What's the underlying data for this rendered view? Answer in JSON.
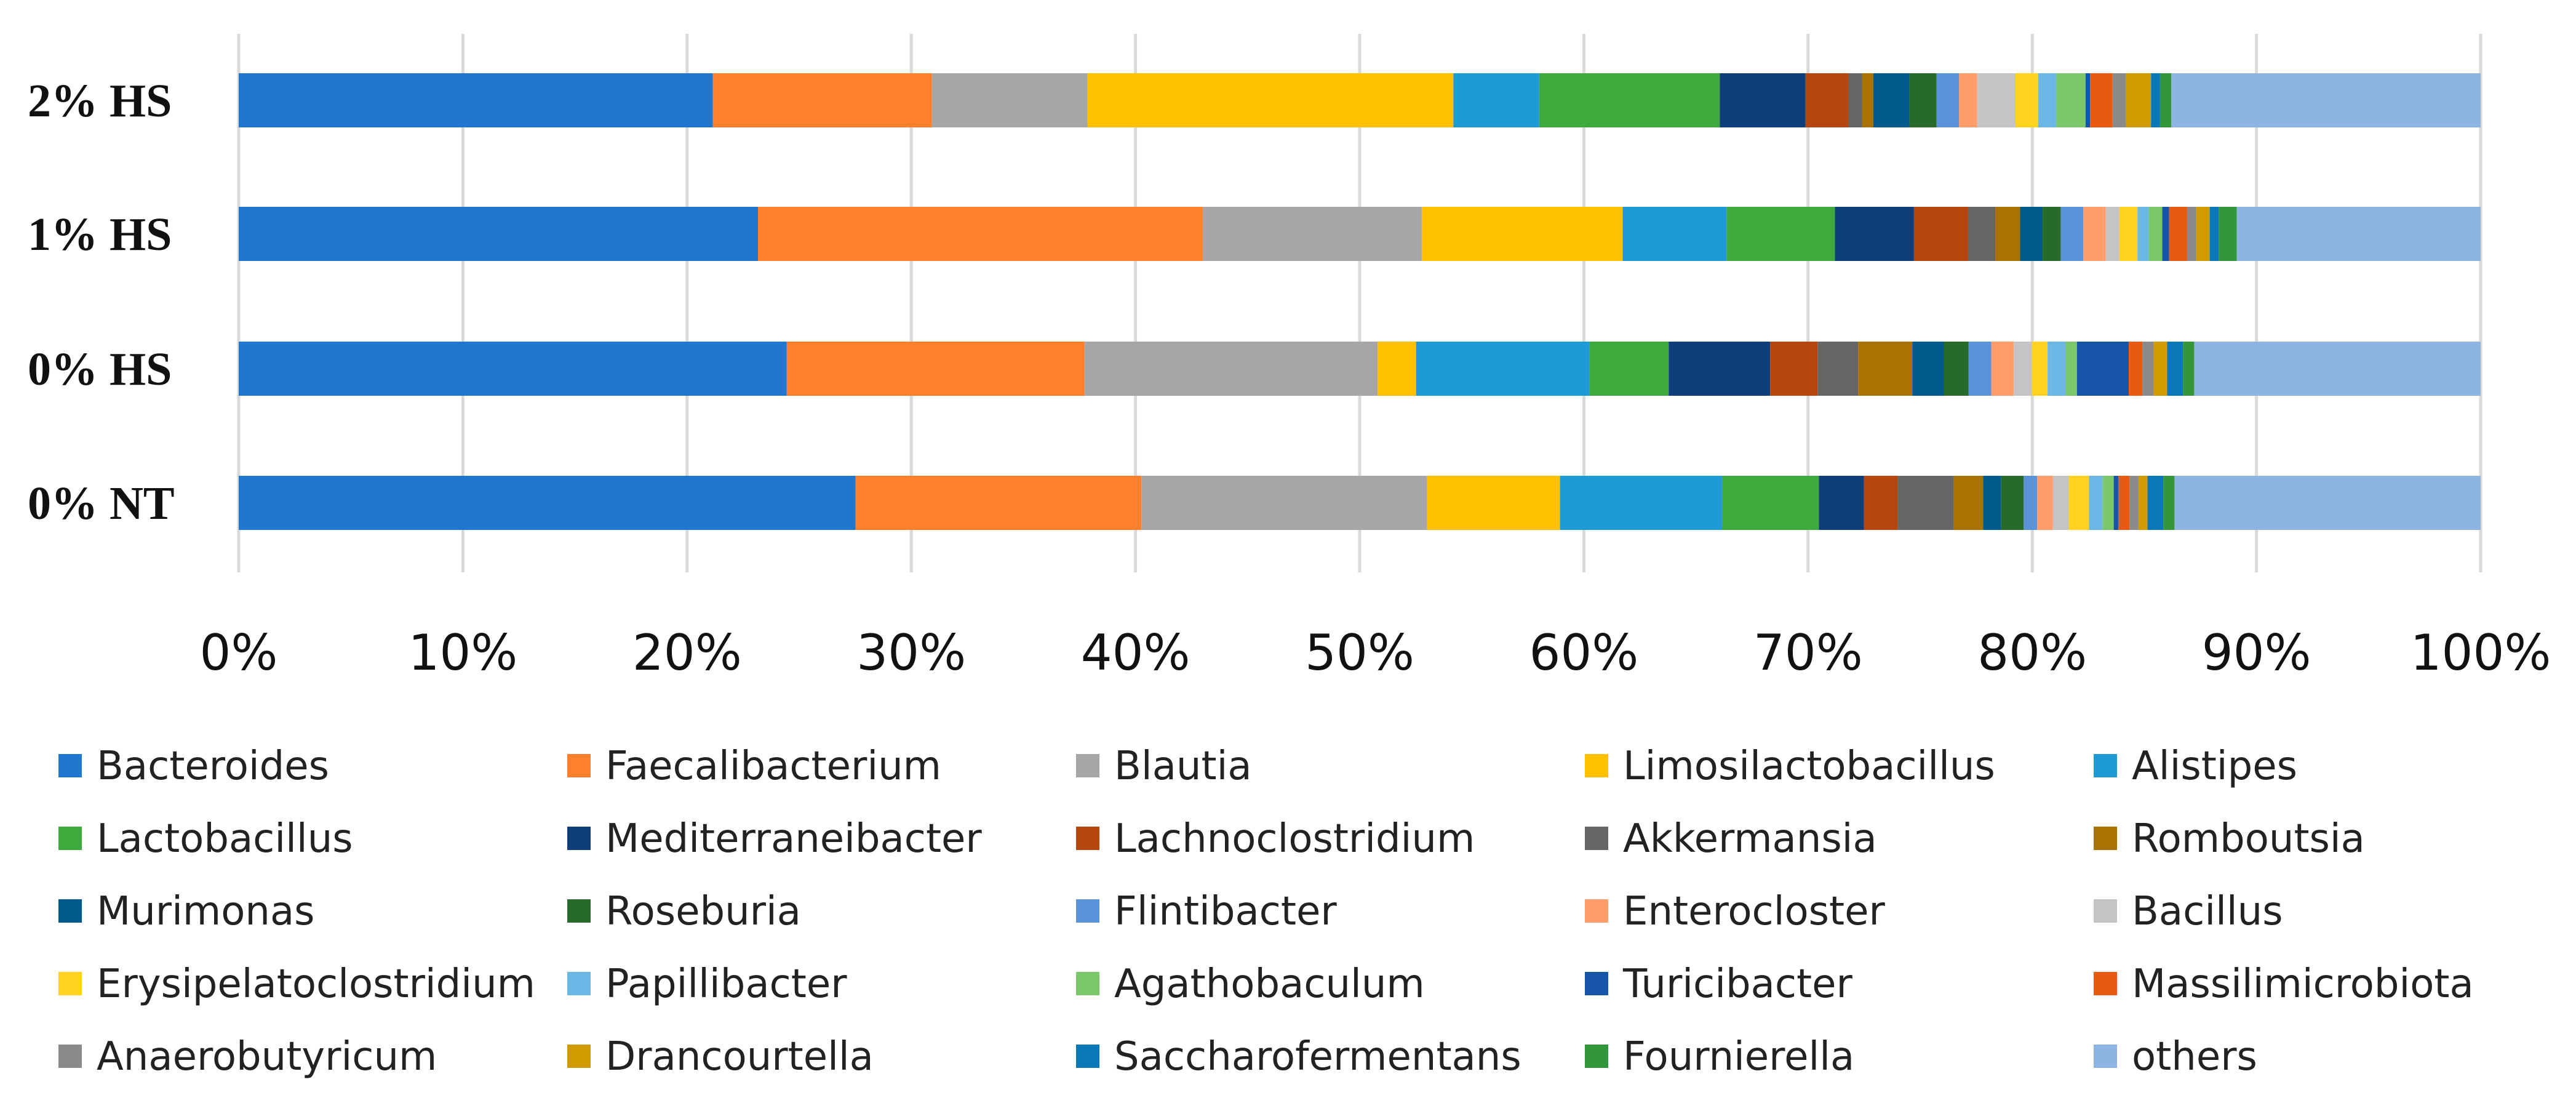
{
  "chart_data": {
    "type": "bar",
    "orientation": "horizontal",
    "stacked": true,
    "normalized": true,
    "categories": [
      "2% HS",
      "1% HS",
      "0% HS",
      "0% NT"
    ],
    "x_ticks": [
      "0%",
      "10%",
      "20%",
      "30%",
      "40%",
      "50%",
      "60%",
      "70%",
      "80%",
      "90%",
      "100%"
    ],
    "xlim": [
      0,
      100
    ],
    "grid": "vertical",
    "legend_position": "bottom",
    "series": [
      {
        "name": "Bacteroides",
        "color": "#1F77CF",
        "values": [
          21.0,
          23.0,
          24.3,
          27.4
        ]
      },
      {
        "name": "Faecalibacterium",
        "color": "#FF7F2A",
        "values": [
          9.7,
          19.7,
          13.2,
          12.7
        ]
      },
      {
        "name": "Blautia",
        "color": "#A6A6A6",
        "values": [
          6.9,
          9.7,
          13.0,
          12.7
        ]
      },
      {
        "name": "Limosilactobacillus",
        "color": "#FFC000",
        "values": [
          16.2,
          8.9,
          1.7,
          5.9
        ]
      },
      {
        "name": "Alistipes",
        "color": "#1E9BD7",
        "values": [
          3.8,
          4.6,
          7.7,
          7.2
        ]
      },
      {
        "name": "Lactobacillus",
        "color": "#3EAA3E",
        "values": [
          8.0,
          4.8,
          3.5,
          4.3
        ]
      },
      {
        "name": "Mediterraneibacter",
        "color": "#0E3F7A",
        "values": [
          3.8,
          3.5,
          4.5,
          2.0
        ]
      },
      {
        "name": "Lachnoclostridium",
        "color": "#B5460F",
        "values": [
          1.9,
          2.4,
          2.1,
          1.5
        ]
      },
      {
        "name": "Akkermansia",
        "color": "#666666",
        "values": [
          0.6,
          1.2,
          1.8,
          2.5
        ]
      },
      {
        "name": "Romboutsia",
        "color": "#A87300",
        "values": [
          0.5,
          1.1,
          2.4,
          1.3
        ]
      },
      {
        "name": "Murimonas",
        "color": "#005A8C",
        "values": [
          1.6,
          1.0,
          1.4,
          0.8
        ]
      },
      {
        "name": "Roseburia",
        "color": "#286A2A",
        "values": [
          1.2,
          0.8,
          1.1,
          1.0
        ]
      },
      {
        "name": "Flintibacter",
        "color": "#5B93DB",
        "values": [
          1.0,
          1.0,
          1.0,
          0.6
        ]
      },
      {
        "name": "Enterocloster",
        "color": "#FF9E6B",
        "values": [
          0.8,
          1.0,
          1.0,
          0.7
        ]
      },
      {
        "name": "Bacillus",
        "color": "#C4C4C4",
        "values": [
          1.7,
          0.6,
          0.8,
          0.7
        ]
      },
      {
        "name": "Erysipelatoclostridium",
        "color": "#FFD21E",
        "values": [
          1.0,
          0.8,
          0.7,
          0.9
        ]
      },
      {
        "name": "Papillibacter",
        "color": "#6CB7E6",
        "values": [
          0.8,
          0.5,
          0.8,
          0.6
        ]
      },
      {
        "name": "Agathobaculum",
        "color": "#7BC86C",
        "values": [
          1.3,
          0.6,
          0.5,
          0.5
        ]
      },
      {
        "name": "Turicibacter",
        "color": "#1654A8",
        "values": [
          0.2,
          0.3,
          2.3,
          0.2
        ]
      },
      {
        "name": "Massilimicrobiota",
        "color": "#E85A12",
        "values": [
          1.0,
          0.8,
          0.6,
          0.5
        ]
      },
      {
        "name": "Anaerobutyricum",
        "color": "#8A8A8A",
        "values": [
          0.6,
          0.4,
          0.5,
          0.4
        ]
      },
      {
        "name": "Drancourtella",
        "color": "#D09A00",
        "values": [
          1.1,
          0.6,
          0.6,
          0.4
        ]
      },
      {
        "name": "Saccharofermentans",
        "color": "#0A78B8",
        "values": [
          0.4,
          0.4,
          0.7,
          0.7
        ]
      },
      {
        "name": "Fournierella",
        "color": "#34963A",
        "values": [
          0.5,
          0.8,
          0.5,
          0.5
        ]
      },
      {
        "name": "others",
        "color": "#8EB4E3",
        "values": [
          13.7,
          10.8,
          12.7,
          13.6
        ]
      }
    ]
  }
}
